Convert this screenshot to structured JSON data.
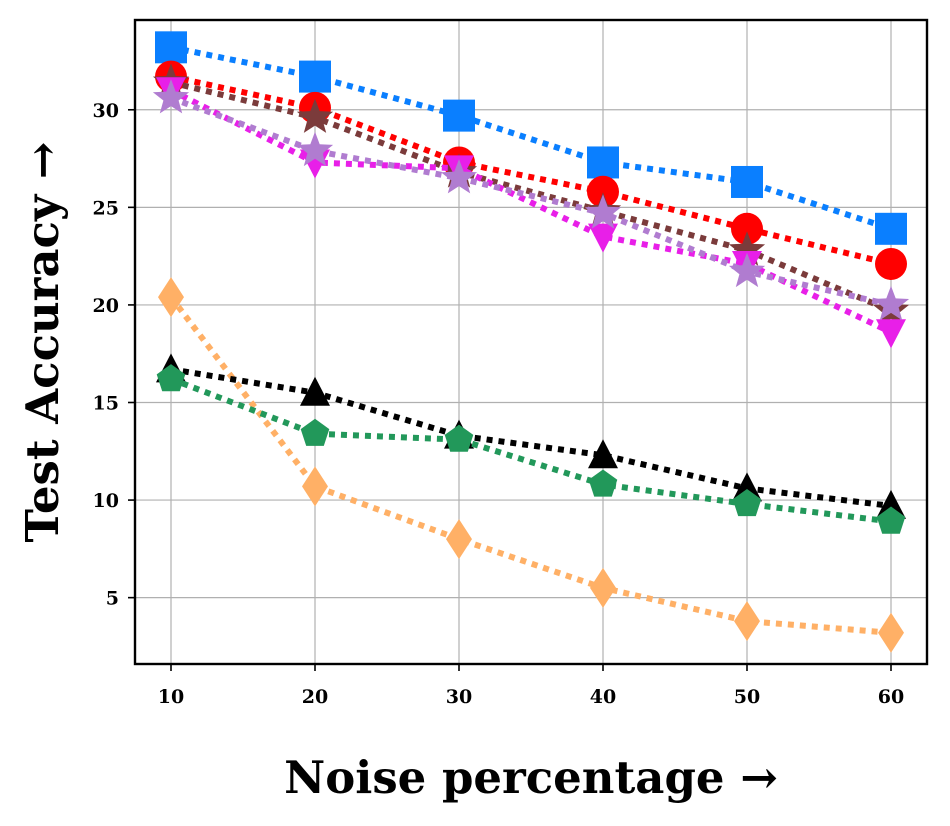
{
  "chart_data": {
    "type": "line",
    "title": "",
    "xlabel": "Noise percentage →",
    "ylabel": "Test Accuracy →",
    "x": [
      10,
      20,
      30,
      40,
      50,
      60
    ],
    "xlim": [
      7.5,
      62.5
    ],
    "ylim": [
      1.6,
      34.6
    ],
    "xticks": [
      "10",
      "20",
      "30",
      "40",
      "50",
      "60"
    ],
    "yticks": [
      "5",
      "10",
      "15",
      "20",
      "25",
      "30"
    ],
    "grid": true,
    "line_style": "dotted",
    "series": [
      {
        "name": "blue-square",
        "marker": "square",
        "color": "#0a7fff",
        "values": [
          33.2,
          31.7,
          29.7,
          27.3,
          26.3,
          23.9
        ]
      },
      {
        "name": "red-circle",
        "marker": "circle",
        "color": "#ff0000",
        "values": [
          31.7,
          30.1,
          27.3,
          25.8,
          23.9,
          22.1
        ]
      },
      {
        "name": "brown-star",
        "marker": "star",
        "color": "#7b3b3b",
        "values": [
          31.4,
          29.6,
          26.8,
          24.8,
          22.8,
          19.7
        ]
      },
      {
        "name": "magenta-triangle-down",
        "marker": "triangle-down",
        "color": "#e81fe8",
        "values": [
          31.0,
          27.3,
          27.0,
          23.5,
          22.1,
          18.6
        ]
      },
      {
        "name": "lavender-star",
        "marker": "star",
        "color": "#b07cd0",
        "values": [
          30.6,
          27.9,
          26.5,
          24.7,
          21.7,
          20.0
        ]
      },
      {
        "name": "orange-diamond",
        "marker": "diamond",
        "color": "#ffb066",
        "values": [
          20.4,
          10.7,
          8.0,
          5.5,
          3.8,
          3.2
        ]
      },
      {
        "name": "black-triangle-up",
        "marker": "triangle-up",
        "color": "#000000",
        "values": [
          16.7,
          15.5,
          13.3,
          12.3,
          10.6,
          9.7
        ]
      },
      {
        "name": "green-pentagon",
        "marker": "pentagon",
        "color": "#22985a",
        "values": [
          16.2,
          13.4,
          13.1,
          10.8,
          9.8,
          8.9
        ]
      }
    ]
  }
}
